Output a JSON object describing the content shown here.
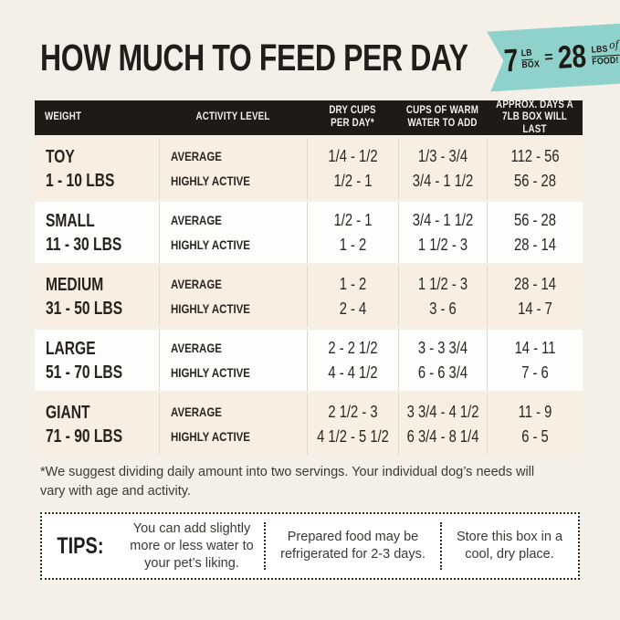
{
  "page": {
    "title": "HOW MUCH TO FEED PER DAY",
    "colors": {
      "background": "#f5f0e7",
      "badge_teal": "#8fd2cb",
      "header_black": "#1e1a16",
      "row_cream": "#f8eee1",
      "row_white": "#fdfdfb",
      "text_dark": "#26221e"
    }
  },
  "badge": {
    "big_left": "7",
    "small_left_top": "LB",
    "small_left_bottom": "BOX",
    "equals": "=",
    "big_right": "28",
    "small_right_top": "LBS",
    "script_word": "of",
    "small_right_bottom": "FOOD!"
  },
  "table": {
    "columns": [
      {
        "label": "WEIGHT"
      },
      {
        "label": "ACTIVITY LEVEL"
      },
      {
        "label": "DRY CUPS\nPER DAY*"
      },
      {
        "label": "CUPS OF WARM\nWATER TO ADD"
      },
      {
        "label": "APPROX. DAYS A\n7LB BOX WILL LAST"
      }
    ],
    "rows": [
      {
        "size": "TOY",
        "weight_range": "1 - 10 LBS",
        "activity": [
          "AVERAGE",
          "HIGHLY ACTIVE"
        ],
        "dry_cups": [
          "1/4 - 1/2",
          "1/2 - 1"
        ],
        "warm_water": [
          "1/3 - 3/4",
          "3/4 - 1 1/2"
        ],
        "days_last": [
          "112 - 56",
          "56 - 28"
        ]
      },
      {
        "size": "SMALL",
        "weight_range": "11 - 30 LBS",
        "activity": [
          "AVERAGE",
          "HIGHLY ACTIVE"
        ],
        "dry_cups": [
          "1/2 - 1",
          "1 - 2"
        ],
        "warm_water": [
          "3/4 - 1 1/2",
          "1 1/2 - 3"
        ],
        "days_last": [
          "56 - 28",
          "28 - 14"
        ]
      },
      {
        "size": "MEDIUM",
        "weight_range": "31 - 50 LBS",
        "activity": [
          "AVERAGE",
          "HIGHLY ACTIVE"
        ],
        "dry_cups": [
          "1 - 2",
          "2 - 4"
        ],
        "warm_water": [
          "1 1/2 - 3",
          "3 - 6"
        ],
        "days_last": [
          "28 - 14",
          "14 - 7"
        ]
      },
      {
        "size": "LARGE",
        "weight_range": "51 - 70 LBS",
        "activity": [
          "AVERAGE",
          "HIGHLY ACTIVE"
        ],
        "dry_cups": [
          "2 - 2 1/2",
          "4 - 4 1/2"
        ],
        "warm_water": [
          "3 - 3 3/4",
          "6 - 6 3/4"
        ],
        "days_last": [
          "14 - 11",
          "7 - 6"
        ]
      },
      {
        "size": "GIANT",
        "weight_range": "71 - 90 LBS",
        "activity": [
          "AVERAGE",
          "HIGHLY ACTIVE"
        ],
        "dry_cups": [
          "2 1/2 - 3",
          "4 1/2 - 5 1/2"
        ],
        "warm_water": [
          "3 3/4 - 4 1/2",
          "6 3/4 - 8 1/4"
        ],
        "days_last": [
          "11 - 9",
          "6 - 5"
        ]
      }
    ]
  },
  "footnote": "*We suggest dividing daily amount into two servings. Your individual dog’s needs will vary with age and activity.",
  "tips": {
    "label": "TIPS:",
    "items": [
      "You can add slightly more or less water to your pet’s liking.",
      "Prepared food may be refrigerated for 2-3 days.",
      "Store this box in a cool, dry place."
    ]
  }
}
